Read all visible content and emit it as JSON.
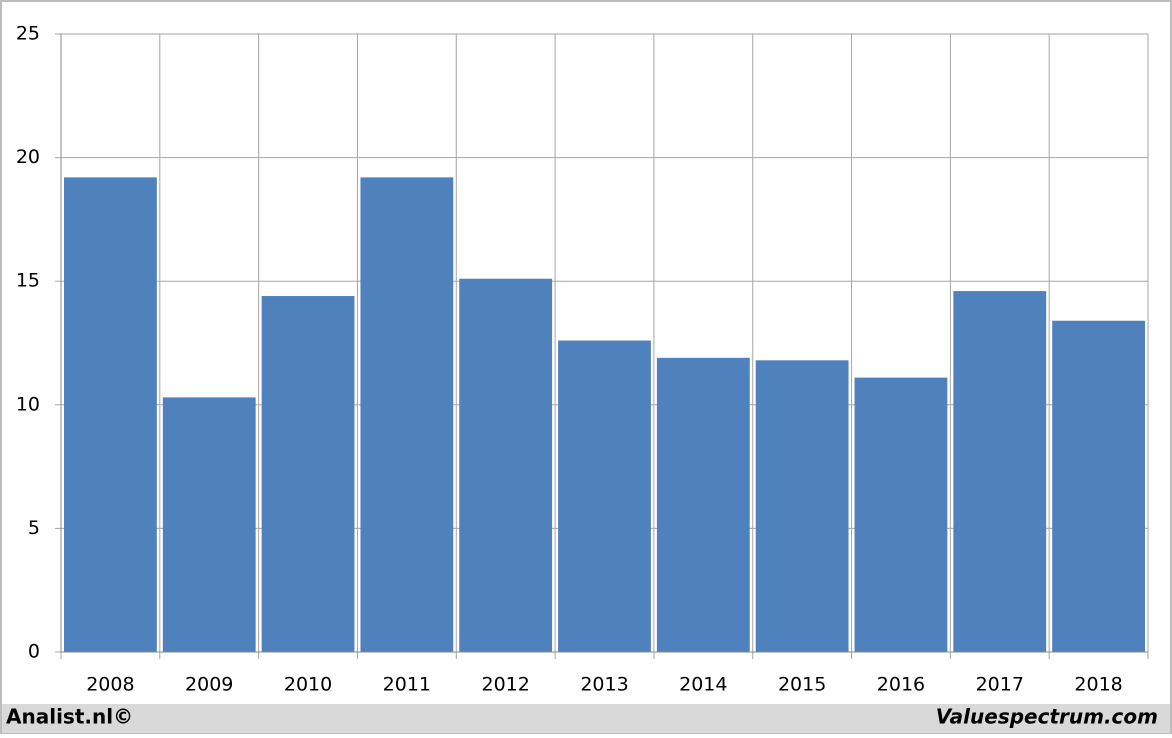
{
  "chart_data": {
    "type": "bar",
    "categories": [
      "2008",
      "2009",
      "2010",
      "2011",
      "2012",
      "2013",
      "2014",
      "2015",
      "2016",
      "2017",
      "2018"
    ],
    "values": [
      19.2,
      10.3,
      14.4,
      19.2,
      15.1,
      12.6,
      11.9,
      11.8,
      11.1,
      14.6,
      13.4
    ],
    "color": "#4f81bd",
    "ylim": [
      0,
      25
    ],
    "yticks": [
      0,
      5,
      10,
      15,
      20,
      25
    ],
    "grid": true
  },
  "footer": {
    "left": "Analist.nl©",
    "right": "Valuespectrum.com"
  }
}
